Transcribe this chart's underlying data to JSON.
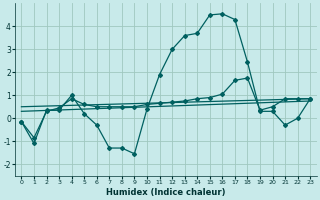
{
  "xlabel": "Humidex (Indice chaleur)",
  "background_color": "#c8eaea",
  "grid_color": "#a0c8c0",
  "line_color": "#006060",
  "x": [
    0,
    1,
    2,
    3,
    4,
    5,
    6,
    7,
    8,
    9,
    10,
    11,
    12,
    13,
    14,
    15,
    16,
    17,
    18,
    19,
    20,
    21,
    22,
    23
  ],
  "line1": [
    -0.15,
    -1.1,
    0.35,
    0.35,
    1.0,
    0.2,
    -0.3,
    -1.3,
    -1.3,
    -1.55,
    0.4,
    1.9,
    3.0,
    3.6,
    3.7,
    4.5,
    4.55,
    4.3,
    2.45,
    0.3,
    0.3,
    -0.3,
    0.0,
    0.85
  ],
  "line2": [
    -0.15,
    -0.85,
    0.3,
    0.45,
    0.85,
    0.6,
    0.5,
    0.5,
    0.5,
    0.5,
    0.6,
    0.65,
    0.7,
    0.75,
    0.85,
    0.9,
    1.05,
    1.65,
    1.75,
    0.35,
    0.5,
    0.85,
    0.85,
    0.85
  ],
  "line3_x": [
    0,
    23
  ],
  "line3_y": [
    0.3,
    0.75
  ],
  "line4_x": [
    0,
    23
  ],
  "line4_y": [
    0.5,
    0.85
  ],
  "ylim": [
    -2.5,
    5.0
  ],
  "yticks": [
    -2,
    -1,
    0,
    1,
    2,
    3,
    4
  ],
  "xticks": [
    0,
    1,
    2,
    3,
    4,
    5,
    6,
    7,
    8,
    9,
    10,
    11,
    12,
    13,
    14,
    15,
    16,
    17,
    18,
    19,
    20,
    21,
    22,
    23
  ]
}
